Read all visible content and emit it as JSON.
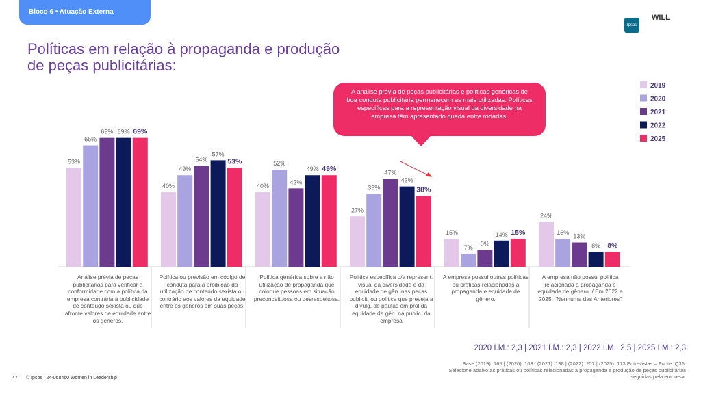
{
  "header": "Bloco 6 • Atuação Externa",
  "title": "Políticas em relação à propaganda e produção de peças publicitárias:",
  "logos": [
    "Ipsos",
    "WILL"
  ],
  "chart_data": {
    "type": "bar",
    "annotation": "A análise prévia de peças publicitárias e políticas genéricas de boa conduta publicitária permanecem as mais utilizadas. Políticas específicas para a representação visual da diversidade na empresa têm apresentado queda entre rodadas.",
    "categories": [
      "Análise prévia de peças publicitárias para verificar a conformidade com a política da empresa contrária à publicidade de conteúdo sexista ou que afronte valores de equidade entre os gêneros.",
      "Política ou previsão em código de conduta para a proibição da utilização de conteúdo sexista ou contrário aos valores da equidade entre os gêneros em suas peças.",
      "Política genérica sobre a não utilização de propaganda que coloque pessoas em situação preconceituosa ou desrespeitosa.",
      "Política específica p/a represent. visual da diversidade e da equidade de gên. nas peças publicit, ou política que preveja a divulg. de pautas em prol da equidade de gên. na public. da empresa",
      "A empresa possui outras políticas ou práticas relacionadas à propaganda e equidade de gênero.",
      "A empresa não possui política relacionada à propaganda e equidade de gênero. / Em 2022 e 2025: “Nenhuma das Anteriores”"
    ],
    "series": [
      {
        "name": "2019",
        "color": "#e3c8ea",
        "values": [
          53,
          40,
          40,
          27,
          15,
          24
        ],
        "value_labels": [
          "53%",
          "40%",
          "40%",
          "27%",
          "15%",
          "24%"
        ]
      },
      {
        "name": "2020",
        "color": "#a9a3e0",
        "values": [
          65,
          49,
          52,
          39,
          7,
          15
        ],
        "value_labels": [
          "65%",
          "49%",
          "52%",
          "39%",
          "7%",
          "15%"
        ]
      },
      {
        "name": "2021",
        "color": "#6c3b8e",
        "values": [
          69,
          54,
          42,
          47,
          9,
          13
        ],
        "value_labels": [
          "69%",
          "54%",
          "42%",
          "47%",
          "9%",
          "13%"
        ]
      },
      {
        "name": "2022",
        "color": "#0c1a5a",
        "values": [
          69,
          57,
          49,
          43,
          14,
          8
        ],
        "value_labels": [
          "69%",
          "57%",
          "49%",
          "43%",
          "14%",
          "8%"
        ]
      },
      {
        "name": "2025",
        "color": "#ee2c66",
        "values": [
          69,
          53,
          49,
          38,
          15,
          8
        ],
        "value_labels": [
          "69%",
          "53%",
          "49%",
          "38%",
          "15%",
          "8%"
        ]
      }
    ]
  },
  "index_note": "2020 I.M.: 2,3 | 2021 I.M.: 2,3 | 2022 I.M.: 2,5 | 2025 I.M.: 2,3",
  "base_note": "Base (2019): 165 | (2020): 163 | (2021): 138 | (2022): 207 | (2025): 173 Entrevistas – Fonte: Q35. Selecione abaixo as práticas ou políticas relacionadas à propaganda e produção de peças publicitárias seguidas pela empresa.",
  "page_number": "47",
  "copyright": "© Ipsos | 24-068460 Women in Leadership"
}
